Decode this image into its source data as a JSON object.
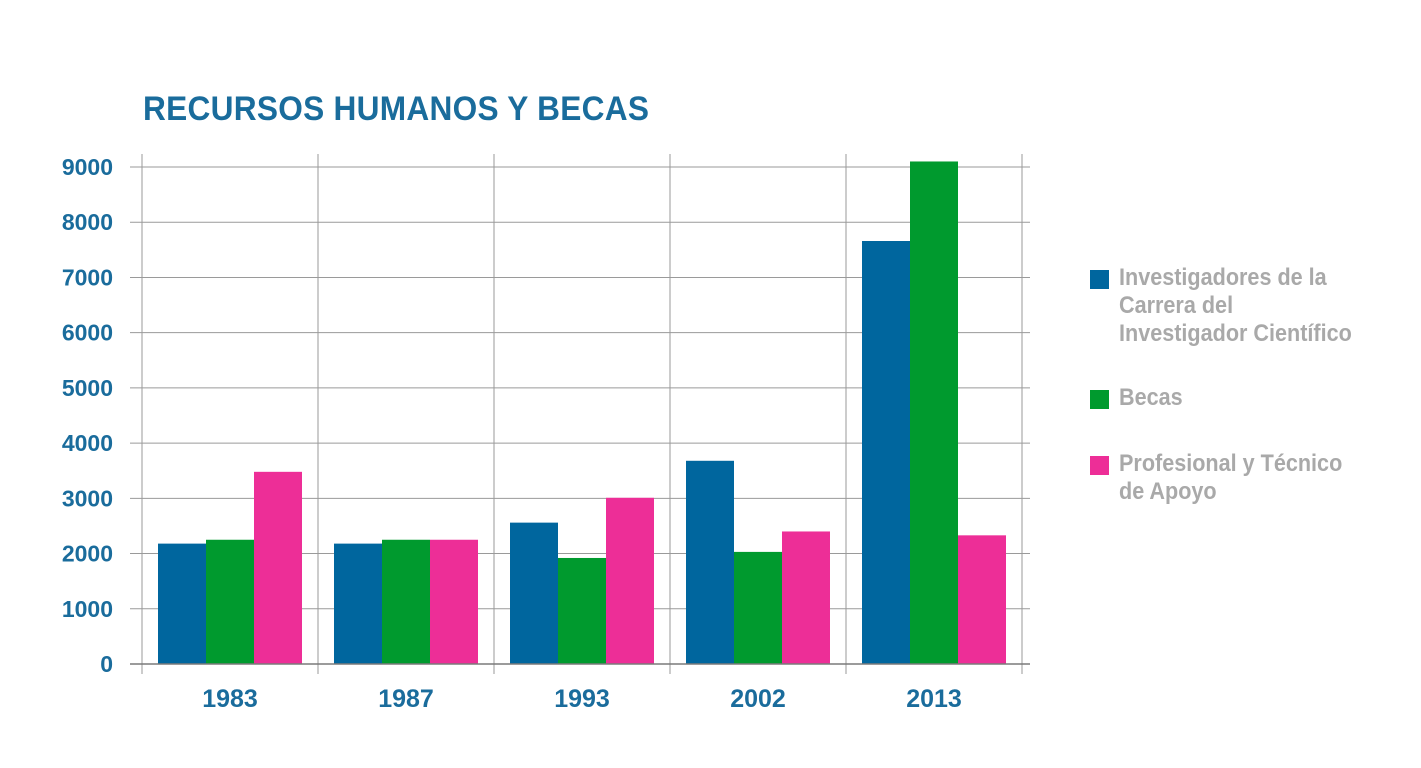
{
  "chart_data": {
    "type": "bar",
    "title": "RECURSOS HUMANOS Y BECAS",
    "xlabel": "",
    "ylabel": "",
    "categories": [
      "1983",
      "1987",
      "1993",
      "2002",
      "2013"
    ],
    "ylim": [
      0,
      9000
    ],
    "yticks": [
      "0",
      "1000",
      "2000",
      "3000",
      "4000",
      "5000",
      "6000",
      "7000",
      "8000",
      "9000"
    ],
    "grid": true,
    "legend_position": "right",
    "series": [
      {
        "name": "Investigadores de la Carrera del Investigador Científico",
        "color": "#00669e",
        "values": [
          2180,
          2180,
          2560,
          3680,
          7660
        ]
      },
      {
        "name": "Becas",
        "color": "#009a2e",
        "values": [
          2250,
          2250,
          1920,
          2030,
          9100
        ]
      },
      {
        "name": "Profesional y Técnico de Apoyo",
        "color": "#ed2e97",
        "values": [
          3480,
          2250,
          3010,
          2400,
          2330
        ]
      }
    ]
  }
}
